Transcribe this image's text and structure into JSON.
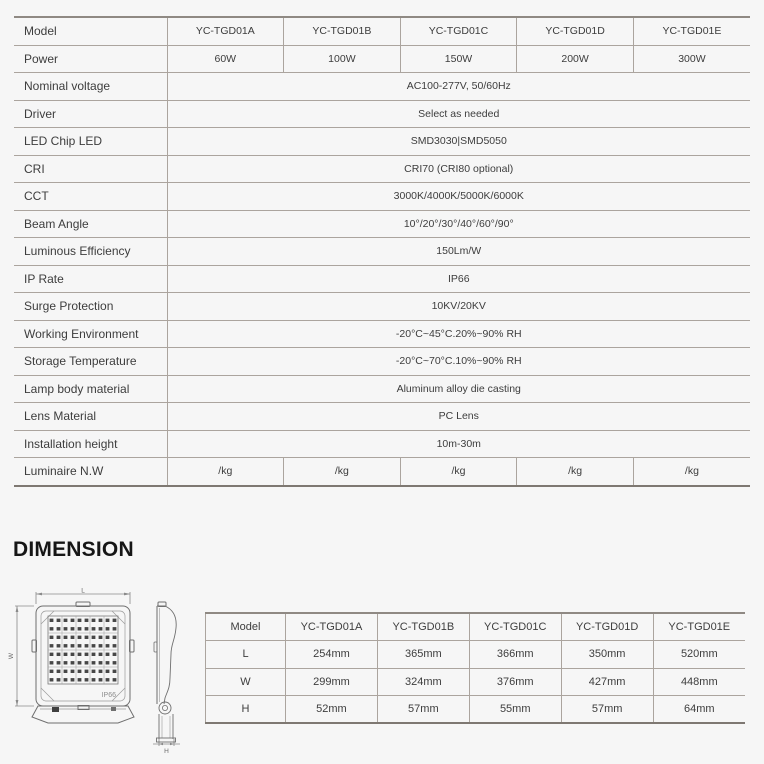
{
  "page": {
    "background": "#f6f6f6"
  },
  "colors": {
    "text": "#3d3d3d",
    "line_inner": "#aba49e",
    "line_outer_top": "#8f8983",
    "line_outer_bottom": "#7e7872",
    "heading": "#161616"
  },
  "spec_table": {
    "rows": [
      {
        "label": "Model",
        "values": [
          "YC-TGD01A",
          "YC-TGD01B",
          "YC-TGD01C",
          "YC-TGD01D",
          "YC-TGD01E"
        ]
      },
      {
        "label": "Power",
        "values": [
          "60W",
          "100W",
          "150W",
          "200W",
          "300W"
        ]
      },
      {
        "label": "Nominal voltage",
        "value": "AC100-277V, 50/60Hz"
      },
      {
        "label": "Driver",
        "value": "Select as needed"
      },
      {
        "label": "LED Chip LED",
        "value": "SMD3030|SMD5050"
      },
      {
        "label": "CRI",
        "value": "CRI70 (CRI80 optional)"
      },
      {
        "label": "CCT",
        "value": "3000K/4000K/5000K/6000K"
      },
      {
        "label": "Beam Angle",
        "value": "10°/20°/30°/40°/60°/90°"
      },
      {
        "label": "Luminous Efficiency",
        "value": "150Lm/W"
      },
      {
        "label": "IP Rate",
        "value": "IP66"
      },
      {
        "label": "Surge Protection",
        "value": "10KV/20KV"
      },
      {
        "label": "Working Environment",
        "value": "-20°C~45°C.20%~90% RH"
      },
      {
        "label": "Storage Temperature",
        "value": "-20°C~70°C.10%~90% RH"
      },
      {
        "label": "Lamp body material",
        "value": "Aluminum alloy die casting"
      },
      {
        "label": "Lens Material",
        "value": "PC Lens"
      },
      {
        "label": "Installation height",
        "value": "10m-30m"
      },
      {
        "label": "Luminaire N.W",
        "values": [
          "/kg",
          "/kg",
          "/kg",
          "/kg",
          "/kg"
        ]
      }
    ]
  },
  "dimension_section": {
    "heading": "DIMENSION"
  },
  "drawing": {
    "label_l": "L",
    "label_w": "W",
    "label_h": "H",
    "ip_text": "IP66"
  },
  "dimension_table": {
    "headers": [
      "Model",
      "YC-TGD01A",
      "YC-TGD01B",
      "YC-TGD01C",
      "YC-TGD01D",
      "YC-TGD01E"
    ],
    "rows": [
      {
        "label": "L",
        "values": [
          "254mm",
          "365mm",
          "366mm",
          "350mm",
          "520mm"
        ]
      },
      {
        "label": "W",
        "values": [
          "299mm",
          "324mm",
          "376mm",
          "427mm",
          "448mm"
        ]
      },
      {
        "label": "H",
        "values": [
          "52mm",
          "57mm",
          "55mm",
          "57mm",
          "64mm"
        ]
      }
    ]
  }
}
